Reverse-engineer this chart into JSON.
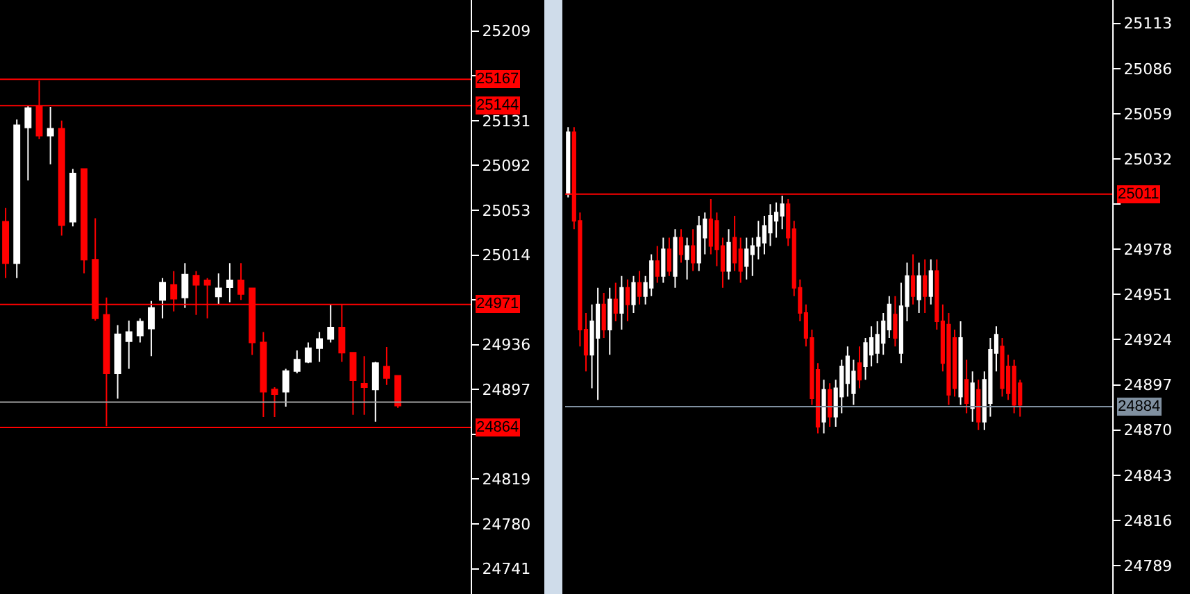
{
  "chart_data": [
    {
      "type": "candlestick",
      "categories": [
        null,
        null,
        null,
        null,
        null,
        null,
        null,
        null,
        null,
        null,
        null,
        null,
        null,
        null,
        null,
        null,
        null,
        null,
        null,
        null,
        null,
        null,
        null,
        null,
        null,
        null,
        null,
        null,
        null,
        null,
        null,
        null,
        null,
        null,
        null,
        null,
        null,
        null,
        null,
        null,
        null,
        null
      ],
      "ohlc": [
        [
          25043,
          25055,
          24994,
          25007
        ],
        [
          25007,
          25132,
          24994,
          25127
        ],
        [
          25125,
          25144,
          25079,
          25142
        ],
        [
          25143,
          25166,
          25115,
          25118
        ],
        [
          25118,
          25143,
          25093,
          25124
        ],
        [
          25124,
          25131,
          25031,
          25040
        ],
        [
          25043,
          25089,
          25039,
          25085
        ],
        [
          25089,
          25089,
          24998,
          25010
        ],
        [
          25010,
          25046,
          24957,
          24959
        ],
        [
          24962,
          24977,
          24865,
          24911
        ],
        [
          24911,
          24953,
          24889,
          24945
        ],
        [
          24939,
          24957,
          24915,
          24947
        ],
        [
          24944,
          24959,
          24938,
          24956
        ],
        [
          24950,
          24974,
          24926,
          24968
        ],
        [
          24975,
          24994,
          24959,
          24990
        ],
        [
          24988,
          25000,
          24965,
          24976
        ],
        [
          24977,
          25007,
          24968,
          24997
        ],
        [
          24996,
          25000,
          24962,
          24988
        ],
        [
          24992,
          24994,
          24959,
          24988
        ],
        [
          24978,
          24998,
          24971,
          24985
        ],
        [
          24986,
          25007,
          24973,
          24992
        ],
        [
          24992,
          25007,
          24975,
          24980
        ],
        [
          24985,
          24985,
          24927,
          24938
        ],
        [
          24938,
          24947,
          24873,
          24895
        ],
        [
          24897,
          24899,
          24873,
          24893
        ],
        [
          24895,
          24915,
          24882,
          24913
        ],
        [
          24913,
          24931,
          24911,
          24923
        ],
        [
          24921,
          24938,
          24920,
          24933
        ],
        [
          24933,
          24947,
          24921,
          24941
        ],
        [
          24941,
          24971,
          24938,
          24951
        ],
        [
          24951,
          24971,
          24921,
          24929
        ],
        [
          24929,
          24929,
          24875,
          24905
        ],
        [
          24902,
          24926,
          24875,
          24899
        ],
        [
          24897,
          24921,
          24869,
          24920
        ],
        [
          24917,
          24934,
          24901,
          24907
        ],
        [
          24909,
          24909,
          24881,
          24883
        ],
        null,
        null,
        null,
        null,
        null,
        null
      ],
      "ylim": [
        24719,
        25236
      ],
      "yticks": [
        25209,
        {
          "value": 25170,
          "label": null
        },
        25131,
        25092,
        25053,
        25014,
        {
          "value": 24975,
          "label": null
        },
        24936,
        24897,
        {
          "value": 24858,
          "label": null
        },
        24819,
        24780,
        24741
      ],
      "ref_lines": [
        {
          "axis": "y",
          "value": 25167,
          "label": "25167",
          "color": "#ff0000"
        },
        {
          "axis": "y",
          "value": 25144,
          "label": "25144",
          "color": "#ff0000"
        },
        {
          "axis": "y",
          "value": 24971,
          "label": "24971",
          "color": "#ff0000"
        },
        {
          "axis": "y",
          "value": 24886,
          "label": null,
          "color": "#a0a0a0"
        },
        {
          "axis": "y",
          "value": 24864,
          "label": "24864",
          "color": "#ff0000"
        }
      ],
      "grid": false,
      "tick_labels": "y"
    },
    {
      "type": "candlestick",
      "categories": [
        null,
        null,
        null,
        null,
        null,
        null,
        null,
        null,
        null,
        null,
        null,
        null,
        null,
        null,
        null,
        null,
        null,
        null,
        null,
        null,
        null,
        null,
        null,
        null,
        null,
        null,
        null,
        null,
        null,
        null,
        null,
        null,
        null,
        null,
        null,
        null,
        null,
        null,
        null,
        null,
        null,
        null,
        null,
        null,
        null,
        null,
        null,
        null,
        null,
        null,
        null,
        null,
        null,
        null,
        null,
        null,
        null,
        null,
        null,
        null,
        null,
        null,
        null,
        null,
        null,
        null,
        null,
        null,
        null,
        null,
        null,
        null,
        null,
        null,
        null,
        null,
        null,
        null,
        null,
        null,
        null,
        null,
        null,
        null,
        null,
        null,
        null,
        null,
        null,
        null,
        null,
        null
      ],
      "ohlc": [
        [
          25011,
          25051,
          25009,
          25048
        ],
        [
          25048,
          25051,
          24990,
          24995
        ],
        [
          24995,
          25000,
          24920,
          24930
        ],
        [
          24930,
          24940,
          24905,
          24915
        ],
        [
          24915,
          24945,
          24895,
          24935
        ],
        [
          24925,
          24955,
          24888,
          24945
        ],
        [
          24945,
          24952,
          24925,
          24930
        ],
        [
          24930,
          24955,
          24915,
          24948
        ],
        [
          24948,
          24958,
          24935,
          24940
        ],
        [
          24940,
          24962,
          24930,
          24955
        ],
        [
          24955,
          24960,
          24935,
          24945
        ],
        [
          24945,
          24962,
          24940,
          24958
        ],
        [
          24958,
          24965,
          24945,
          24950
        ],
        [
          24950,
          24962,
          24945,
          24958
        ],
        [
          24955,
          24975,
          24950,
          24971
        ],
        [
          24971,
          24980,
          24958,
          24962
        ],
        [
          24962,
          24985,
          24958,
          24978
        ],
        [
          24978,
          24985,
          24962,
          24965
        ],
        [
          24962,
          24990,
          24955,
          24985
        ],
        [
          24985,
          24990,
          24970,
          24975
        ],
        [
          24972,
          24985,
          24960,
          24980
        ],
        [
          24980,
          24990,
          24965,
          24970
        ],
        [
          24970,
          24998,
          24965,
          24992
        ],
        [
          24985,
          25000,
          24975,
          24996
        ],
        [
          24996,
          25008,
          24975,
          24980
        ],
        [
          24995,
          25000,
          24968,
          24978
        ],
        [
          24980,
          24985,
          24955,
          24965
        ],
        [
          24965,
          24990,
          24960,
          24982
        ],
        [
          24985,
          24998,
          24965,
          24970
        ],
        [
          24978,
          24985,
          24958,
          24965
        ],
        [
          24968,
          24985,
          24960,
          24978
        ],
        [
          24975,
          24985,
          24962,
          24980
        ],
        [
          24980,
          24995,
          24972,
          24985
        ],
        [
          24982,
          24998,
          24975,
          24992
        ],
        [
          24988,
          25005,
          24980,
          24998
        ],
        [
          24995,
          25006,
          24985,
          25000
        ],
        [
          24998,
          25010,
          24990,
          25005
        ],
        [
          25005,
          25008,
          24980,
          24985
        ],
        [
          24990,
          24995,
          24950,
          24955
        ],
        [
          24955,
          24960,
          24935,
          24940
        ],
        [
          24940,
          24945,
          24920,
          24925
        ],
        [
          24925,
          24930,
          24885,
          24889
        ],
        [
          24906,
          24910,
          24868,
          24872
        ],
        [
          24875,
          24900,
          24868,
          24894
        ],
        [
          24894,
          24898,
          24872,
          24878
        ],
        [
          24878,
          24900,
          24872,
          24895
        ],
        [
          24890,
          24912,
          24880,
          24908
        ],
        [
          24898,
          24920,
          24890,
          24914
        ],
        [
          24892,
          24912,
          24885,
          24905
        ],
        [
          24910,
          24920,
          24895,
          24900
        ],
        [
          24908,
          24925,
          24900,
          24922
        ],
        [
          24915,
          24932,
          24908,
          24925
        ],
        [
          24916,
          24935,
          24910,
          24927
        ],
        [
          24922,
          24940,
          24915,
          24935
        ],
        [
          24930,
          24950,
          24925,
          24945
        ],
        [
          24939,
          24950,
          24920,
          24925
        ],
        [
          24916,
          24958,
          24910,
          24944
        ],
        [
          24944,
          24970,
          24935,
          24962
        ],
        [
          24962,
          24975,
          24945,
          24950
        ],
        [
          24948,
          24970,
          24940,
          24962
        ],
        [
          24962,
          24972,
          24940,
          24950
        ],
        [
          24950,
          24972,
          24945,
          24965
        ],
        [
          24965,
          24972,
          24930,
          24935
        ],
        [
          24935,
          24945,
          24905,
          24910
        ],
        [
          24933,
          24940,
          24885,
          24891
        ],
        [
          24925,
          24930,
          24890,
          24895
        ],
        [
          24890,
          24935,
          24885,
          24925
        ],
        [
          24900,
          24912,
          24880,
          24886
        ],
        [
          24883,
          24905,
          24875,
          24898
        ],
        [
          24894,
          24900,
          24870,
          24875
        ],
        [
          24875,
          24905,
          24870,
          24900
        ],
        [
          24886,
          24925,
          24878,
          24918
        ],
        [
          24916,
          24932,
          24905,
          24927
        ],
        [
          24920,
          24925,
          24890,
          24895
        ],
        [
          24908,
          24915,
          24888,
          24892
        ],
        [
          24908,
          24912,
          24880,
          24885
        ],
        [
          24898,
          24900,
          24878,
          24885
        ],
        null,
        null,
        null,
        null,
        null,
        null,
        null,
        null,
        null,
        null,
        null,
        null,
        null,
        null,
        null
      ],
      "ylim": [
        24772,
        25127
      ],
      "yticks": [
        25113,
        25086,
        25059,
        25032,
        {
          "value": 25005,
          "label": null
        },
        24978,
        24951,
        24924,
        24897,
        24870,
        24843,
        24816,
        24789
      ],
      "ref_lines": [
        {
          "axis": "y",
          "value": 25011,
          "label": "25011",
          "color": "#ff0000"
        },
        {
          "axis": "y",
          "value": 24884,
          "label": "24884",
          "color": "#8090a0"
        }
      ],
      "grid": false,
      "tick_labels": "y"
    }
  ]
}
